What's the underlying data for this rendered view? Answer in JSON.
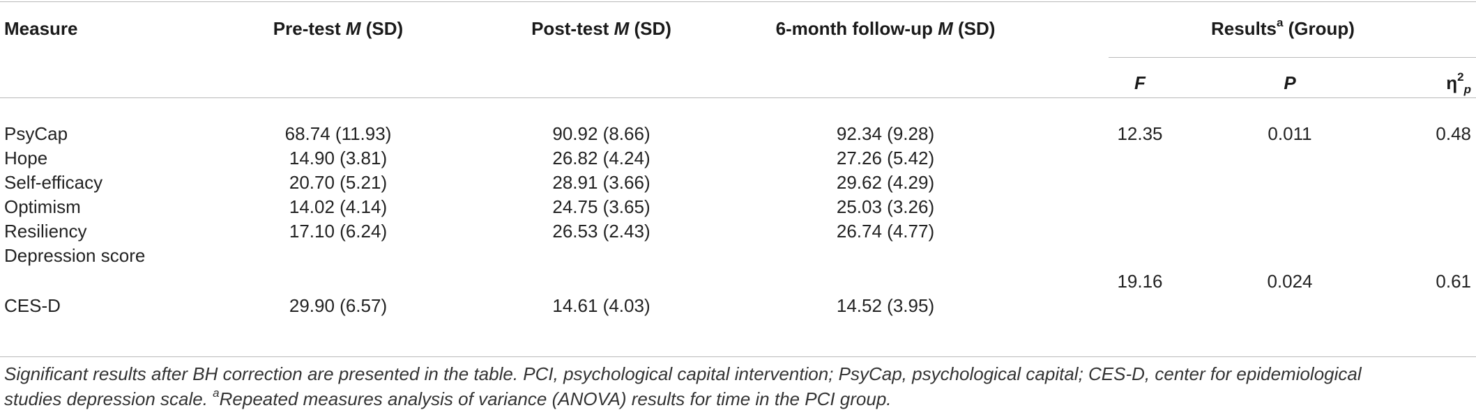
{
  "table": {
    "header": {
      "measure": "Measure",
      "pretest_prefix": "Pre-test ",
      "pretest_m": "M",
      "pretest_suffix": " (SD)",
      "posttest_prefix": "Post-test ",
      "posttest_m": "M",
      "posttest_suffix": " (SD)",
      "followup_prefix": "6-month follow-up ",
      "followup_m": "M",
      "followup_suffix": " (SD)",
      "results_label": "Results",
      "results_sup": "a",
      "results_suffix": " (Group)",
      "f_label": "F",
      "p_label": "P",
      "eta_symbol": "η",
      "eta_sup": "2",
      "eta_sub": "p"
    },
    "rows": [
      {
        "measure": "PsyCap",
        "pre": "68.74 (11.93)",
        "post": "90.92 (8.66)",
        "follow": "92.34 (9.28)",
        "f": "12.35",
        "p": "0.011",
        "eta": "0.48"
      },
      {
        "measure": "Hope",
        "pre": "14.90 (3.81)",
        "post": "26.82 (4.24)",
        "follow": "27.26 (5.42)",
        "f": "",
        "p": "",
        "eta": ""
      },
      {
        "measure": "Self-efficacy",
        "pre": "20.70 (5.21)",
        "post": "28.91 (3.66)",
        "follow": "29.62 (4.29)",
        "f": "",
        "p": "",
        "eta": ""
      },
      {
        "measure": "Optimism",
        "pre": "14.02 (4.14)",
        "post": "24.75 (3.65)",
        "follow": "25.03 (3.26)",
        "f": "",
        "p": "",
        "eta": ""
      },
      {
        "measure": "Resiliency",
        "pre": "17.10 (6.24)",
        "post": "26.53 (2.43)",
        "follow": "26.74 (4.77)",
        "f": "",
        "p": "",
        "eta": ""
      },
      {
        "measure": "Depression score",
        "pre": "",
        "post": "",
        "follow": "",
        "f": "19.16",
        "p": "0.024",
        "eta": "0.61"
      },
      {
        "measure": "CES-D",
        "pre": "29.90 (6.57)",
        "post": "14.61 (4.03)",
        "follow": "14.52 (3.95)",
        "f": "",
        "p": "",
        "eta": ""
      }
    ]
  },
  "footnote": {
    "line1": "Significant results after BH correction are presented in the table. PCI, psychological capital intervention; PsyCap, psychological capital; CES-D, center for epidemiological",
    "line2_prefix": "studies depression scale. ",
    "line2_sup": "a",
    "line2_rest": "Repeated measures analysis of variance (ANOVA) results for time in the PCI group."
  }
}
